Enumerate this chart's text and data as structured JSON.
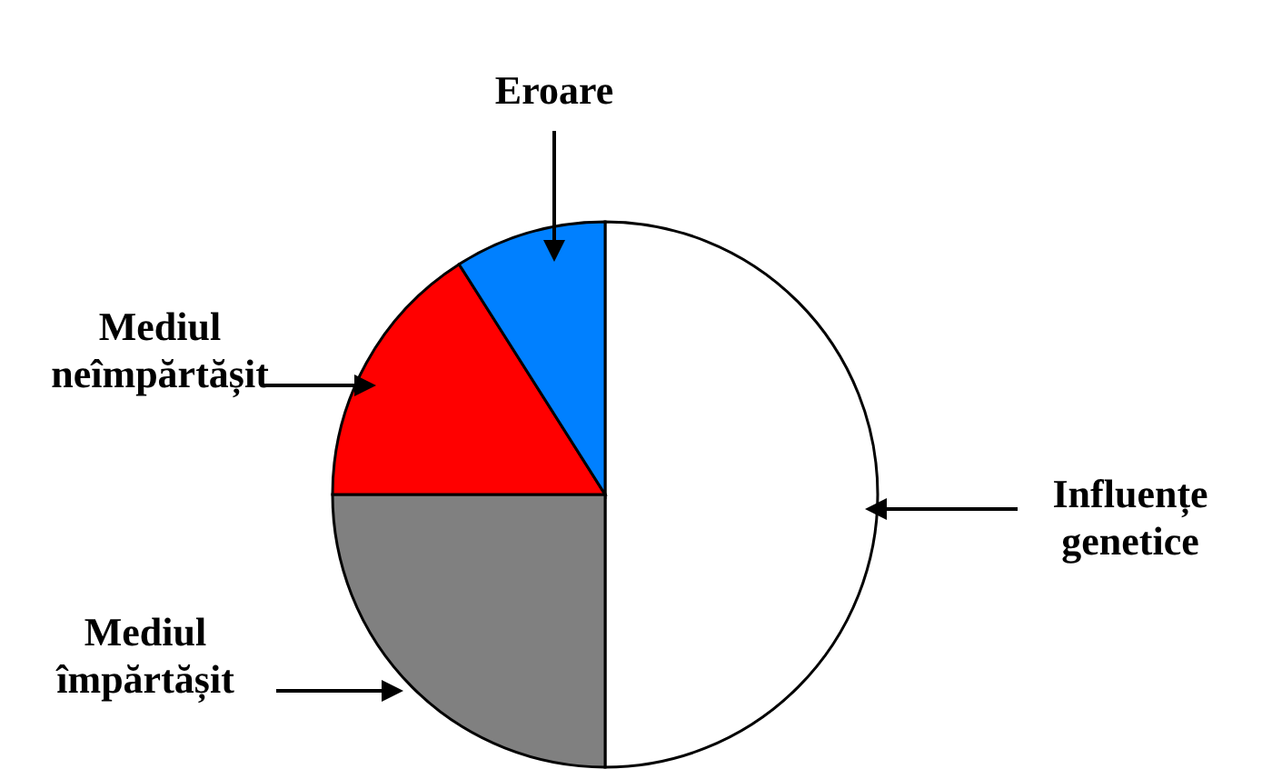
{
  "chart_data": {
    "type": "pie",
    "categories": [
      "Influențe genetice",
      "Mediul împărtășit",
      "Mediul neîmpărtășit",
      "Eroare"
    ],
    "values": [
      50,
      25,
      16,
      9
    ],
    "colors": [
      "#ffffff",
      "#808080",
      "#ff0000",
      "#0080ff"
    ]
  }
}
